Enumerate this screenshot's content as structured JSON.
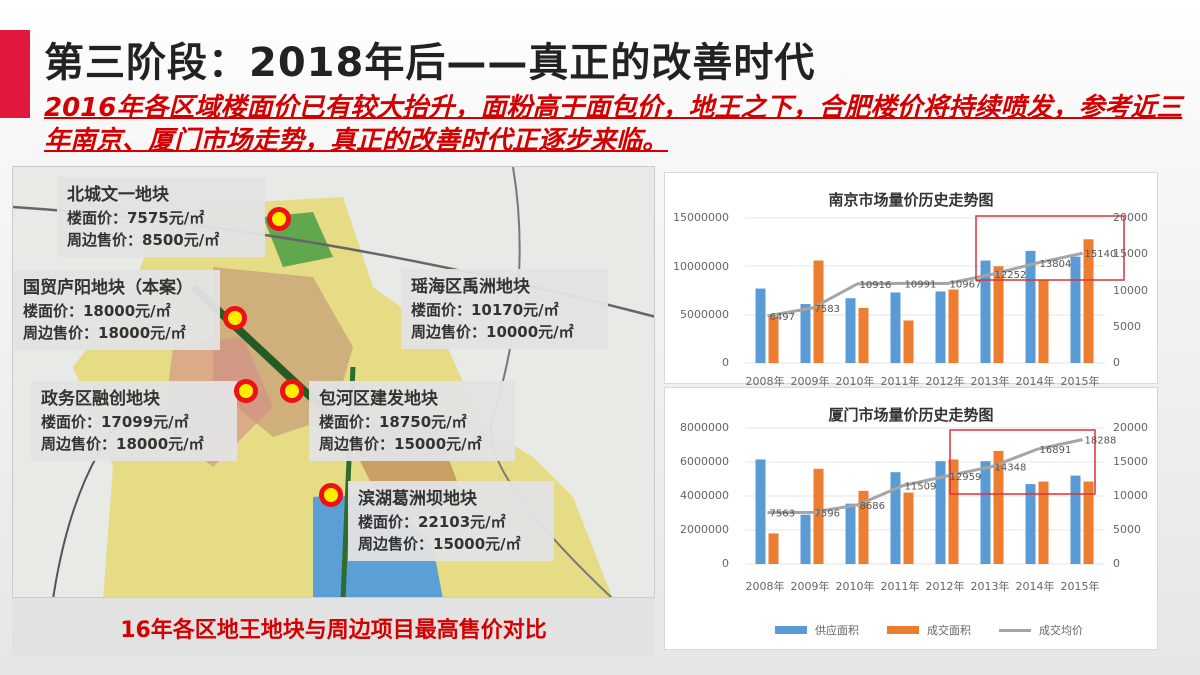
{
  "slide": {
    "title": "第三阶段：2018年后——真正的改善时代",
    "subtitle": "2016年各区域楼面价已有较大抬升，面粉高于面包价，地王之下，合肥楼价将持续喷发，参考近三年南京、厦门市场走势，真正的改善时代正逐步来临。",
    "accent_color": "#e3183e",
    "subtitle_color": "#d40000"
  },
  "map": {
    "caption": "16年各区地王地块与周边项目最高售价对比",
    "plots": [
      {
        "name": "北城文一地块",
        "floor_price": "楼面价：7575元/㎡",
        "nearby_price": "周边售价：8500元/㎡"
      },
      {
        "name": "国贸庐阳地块（本案）",
        "floor_price": "楼面价：18000元/㎡",
        "nearby_price": "周边售价：18000元/㎡"
      },
      {
        "name": "瑶海区禹洲地块",
        "floor_price": "楼面价：10170元/㎡",
        "nearby_price": "周边售价：10000元/㎡"
      },
      {
        "name": "政务区融创地块",
        "floor_price": "楼面价：17099元/㎡",
        "nearby_price": "周边售价：18000元/㎡"
      },
      {
        "name": "包河区建发地块",
        "floor_price": "楼面价：18750元/㎡",
        "nearby_price": "周边售价：15000元/㎡"
      },
      {
        "name": "滨湖葛洲坝地块",
        "floor_price": "楼面价：22103元/㎡",
        "nearby_price": "周边售价：15000元/㎡"
      }
    ]
  },
  "chart_data": [
    {
      "type": "bar",
      "title": "南京市场量价历史走势图",
      "categories": [
        "2008年",
        "2009年",
        "2010年",
        "2011年",
        "2012年",
        "2013年",
        "2014年",
        "2015年"
      ],
      "series": [
        {
          "name": "供应面积",
          "type": "bar",
          "axis": "left",
          "color": "#5b9bd5",
          "values": [
            7700000,
            6100000,
            6700000,
            7300000,
            7400000,
            10600000,
            11600000,
            11000000
          ]
        },
        {
          "name": "成交面积",
          "type": "bar",
          "axis": "left",
          "color": "#ed7d31",
          "values": [
            4800000,
            10600000,
            5700000,
            4400000,
            7600000,
            10000000,
            8600000,
            12800000
          ]
        },
        {
          "name": "成交均价",
          "type": "line",
          "axis": "right",
          "color": "#a5a5a5",
          "values": [
            6497,
            7583,
            10916,
            10991,
            10967,
            12252,
            13804,
            15140
          ]
        }
      ],
      "ylim_left": [
        0,
        15000000
      ],
      "yticks_left": [
        "15000000",
        "10000000",
        "5000000",
        "0"
      ],
      "ylim_right": [
        0,
        20000
      ],
      "yticks_right": [
        "20000",
        "15000",
        "10000",
        "5000",
        "0"
      ],
      "highlight_box": "2013年–2015年",
      "grid": true
    },
    {
      "type": "bar",
      "title": "厦门市场量价历史走势图",
      "categories": [
        "2008年",
        "2009年",
        "2010年",
        "2011年",
        "2012年",
        "2013年",
        "2014年",
        "2015年"
      ],
      "series": [
        {
          "name": "供应面积",
          "type": "bar",
          "axis": "left",
          "color": "#5b9bd5",
          "values": [
            6150000,
            2900000,
            3550000,
            5400000,
            6050000,
            6050000,
            4700000,
            5200000
          ]
        },
        {
          "name": "成交面积",
          "type": "bar",
          "axis": "left",
          "color": "#ed7d31",
          "values": [
            1800000,
            5600000,
            4300000,
            4200000,
            6150000,
            6650000,
            4850000,
            4850000
          ]
        },
        {
          "name": "成交均价",
          "type": "line",
          "axis": "right",
          "color": "#a5a5a5",
          "values": [
            7563,
            7596,
            8686,
            11509,
            12959,
            14348,
            16891,
            18288
          ]
        }
      ],
      "ylim_left": [
        0,
        8000000
      ],
      "yticks_left": [
        "8000000",
        "6000000",
        "4000000",
        "2000000",
        "0"
      ],
      "ylim_right": [
        0,
        20000
      ],
      "yticks_right": [
        "20000",
        "15000",
        "10000",
        "5000",
        "0"
      ],
      "highlight_box": "2013年–2015年",
      "grid": true,
      "legend": [
        "供应面积",
        "成交面积",
        "成交均价"
      ],
      "legend_position": "bottom"
    }
  ]
}
